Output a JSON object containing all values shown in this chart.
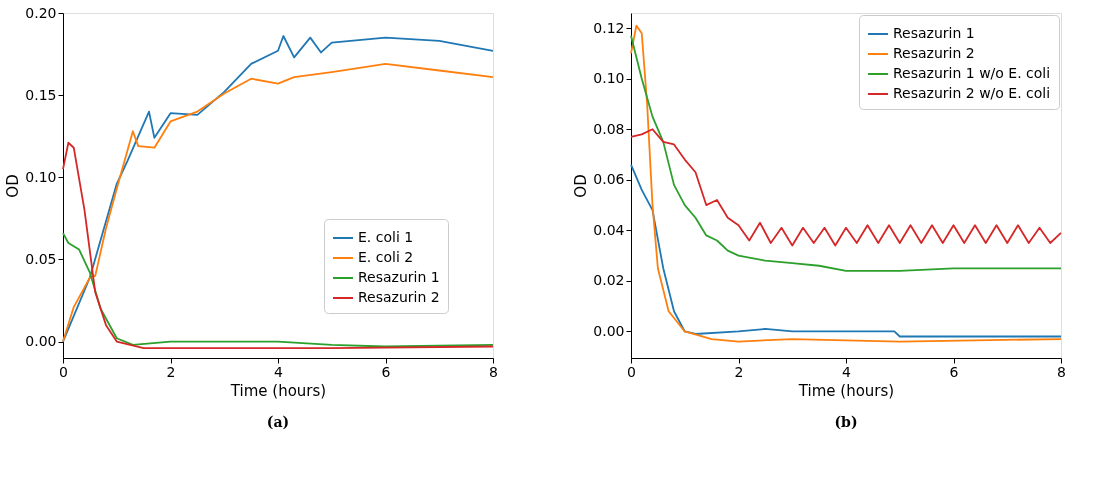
{
  "chart_data": [
    {
      "type": "line",
      "title": "(a)",
      "xlabel": "Time (hours)",
      "ylabel": "OD",
      "xlim": [
        0,
        8
      ],
      "xticks": [
        0,
        2,
        4,
        6,
        8
      ],
      "ylim": [
        -0.01,
        0.2
      ],
      "yticks": [
        {
          "value": 0,
          "label": "0.00"
        },
        {
          "value": 0.05,
          "label": "0.05"
        },
        {
          "value": 0.1,
          "label": "0.10"
        },
        {
          "value": 0.15,
          "label": "0.15"
        },
        {
          "value": 0.2,
          "label": "0.20"
        }
      ],
      "grid": false,
      "legend": "right",
      "series": [
        {
          "name": "E. coli 1",
          "color": "#1f77b4",
          "x": [
            0,
            0.5,
            1,
            1.2,
            1.6,
            1.7,
            2,
            2.5,
            3,
            3.5,
            4,
            4.1,
            4.3,
            4.6,
            4.8,
            5,
            6,
            7,
            8
          ],
          "values": [
            0,
            0.039,
            0.096,
            0.11,
            0.14,
            0.124,
            0.139,
            0.138,
            0.152,
            0.169,
            0.177,
            0.186,
            0.173,
            0.185,
            0.176,
            0.182,
            0.185,
            0.183,
            0.177
          ]
        },
        {
          "name": "E. coli 2",
          "color": "#ff7f0e",
          "x": [
            0,
            0.2,
            0.4,
            0.5,
            0.6,
            0.8,
            1,
            1.3,
            1.4,
            1.7,
            2,
            2.5,
            3,
            3.5,
            4,
            4.3,
            5,
            6,
            7,
            8
          ],
          "values": [
            0,
            0.021,
            0.033,
            0.039,
            0.04,
            0.069,
            0.093,
            0.128,
            0.119,
            0.118,
            0.134,
            0.14,
            0.151,
            0.16,
            0.157,
            0.161,
            0.164,
            0.169,
            0.165,
            0.161
          ]
        },
        {
          "name": "Resazurin 1",
          "color": "#2ca02c",
          "x": [
            0,
            0.1,
            0.3,
            0.5,
            0.7,
            1,
            1.3,
            2,
            3,
            4,
            5,
            6,
            8
          ],
          "values": [
            0.066,
            0.06,
            0.056,
            0.042,
            0.02,
            0.002,
            -0.002,
            0,
            0,
            0,
            -0.002,
            -0.003,
            -0.002
          ]
        },
        {
          "name": "Resazurin 2",
          "color": "#d62728",
          "x": [
            0,
            0.1,
            0.2,
            0.4,
            0.6,
            0.8,
            1,
            1.5,
            2,
            3,
            5,
            8
          ],
          "values": [
            0.105,
            0.121,
            0.118,
            0.08,
            0.03,
            0.01,
            0,
            -0.004,
            -0.004,
            -0.004,
            -0.004,
            -0.003
          ]
        }
      ]
    },
    {
      "type": "line",
      "title": "(b)",
      "xlabel": "Time (hours)",
      "ylabel": "OD",
      "xlim": [
        0,
        8
      ],
      "xticks": [
        0,
        2,
        4,
        6,
        8
      ],
      "ylim": [
        -0.0105,
        0.126
      ],
      "yticks": [
        {
          "value": 0,
          "label": "0.00"
        },
        {
          "value": 0.02,
          "label": "0.02"
        },
        {
          "value": 0.04,
          "label": "0.04"
        },
        {
          "value": 0.06,
          "label": "0.06"
        },
        {
          "value": 0.08,
          "label": "0.08"
        },
        {
          "value": 0.1,
          "label": "0.10"
        },
        {
          "value": 0.12,
          "label": "0.12"
        }
      ],
      "grid": false,
      "legend": "top right",
      "series": [
        {
          "name": "Resazurin 1",
          "color": "#1f77b4",
          "x": [
            0,
            0.2,
            0.4,
            0.6,
            0.8,
            1,
            1.2,
            2,
            2.5,
            3,
            4,
            4.9,
            5,
            6,
            8
          ],
          "values": [
            0.066,
            0.056,
            0.048,
            0.025,
            0.008,
            0,
            -0.001,
            0,
            0.001,
            0,
            0,
            0,
            -0.002,
            -0.002,
            -0.002
          ]
        },
        {
          "name": "Resazurin 2",
          "color": "#ff7f0e",
          "x": [
            0,
            0.1,
            0.2,
            0.3,
            0.4,
            0.5,
            0.7,
            1,
            1.5,
            2,
            3,
            5,
            8
          ],
          "values": [
            0.11,
            0.121,
            0.118,
            0.09,
            0.05,
            0.025,
            0.008,
            0,
            -0.003,
            -0.004,
            -0.003,
            -0.004,
            -0.003
          ]
        },
        {
          "name": "Resazurin 1 w/o E. coli",
          "color": "#2ca02c",
          "x": [
            0,
            0.2,
            0.4,
            0.6,
            0.8,
            1,
            1.2,
            1.4,
            1.6,
            1.8,
            2,
            2.5,
            3,
            3.5,
            4,
            5,
            6,
            7,
            8
          ],
          "values": [
            0.117,
            0.1,
            0.085,
            0.075,
            0.058,
            0.05,
            0.045,
            0.038,
            0.036,
            0.032,
            0.03,
            0.028,
            0.027,
            0.026,
            0.024,
            0.024,
            0.025,
            0.025,
            0.025
          ]
        },
        {
          "name": "Resazurin 2 w/o E. coli",
          "color": "#d62728",
          "x": [
            0,
            0.2,
            0.4,
            0.6,
            0.8,
            1,
            1.2,
            1.4,
            1.6,
            1.8,
            2,
            2.2,
            2.4,
            2.6,
            2.8,
            3,
            3.2,
            3.4,
            3.6,
            3.8,
            4,
            4.2,
            4.4,
            4.6,
            4.8,
            5,
            5.2,
            5.4,
            5.6,
            5.8,
            6,
            6.2,
            6.4,
            6.6,
            6.8,
            7,
            7.2,
            7.4,
            7.6,
            7.8,
            8
          ],
          "values": [
            0.077,
            0.078,
            0.08,
            0.075,
            0.074,
            0.068,
            0.063,
            0.05,
            0.052,
            0.045,
            0.042,
            0.036,
            0.043,
            0.035,
            0.041,
            0.034,
            0.041,
            0.035,
            0.041,
            0.034,
            0.041,
            0.035,
            0.042,
            0.035,
            0.042,
            0.035,
            0.042,
            0.035,
            0.042,
            0.035,
            0.042,
            0.035,
            0.042,
            0.035,
            0.042,
            0.035,
            0.042,
            0.035,
            0.041,
            0.035,
            0.039
          ]
        }
      ]
    }
  ]
}
